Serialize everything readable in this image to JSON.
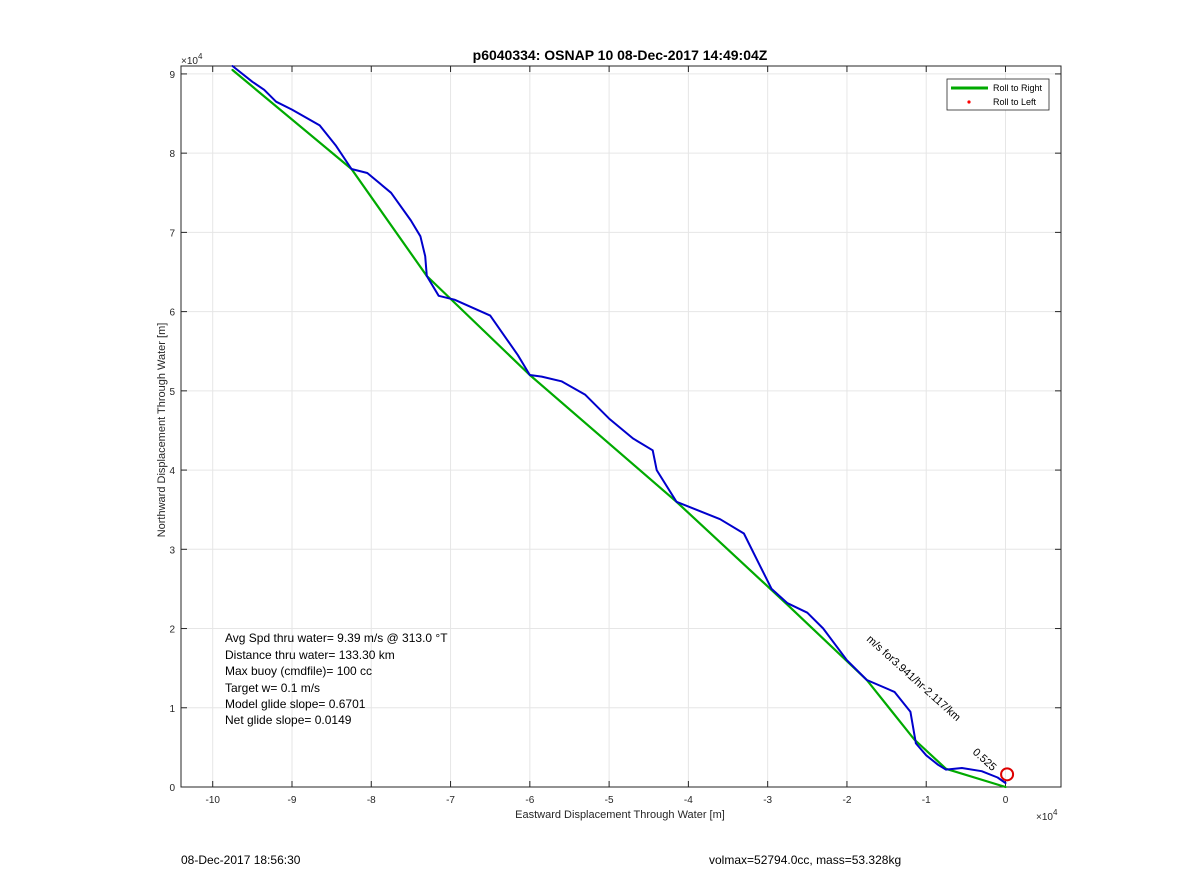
{
  "chart_data": {
    "type": "line",
    "title": "p6040334: OSNAP 10 08-Dec-2017 14:49:04Z",
    "xlabel": "Eastward Displacement Through Water [m]",
    "ylabel": "Northward Displacement Through Water [m]",
    "x_exponent_label": "×10",
    "x_exponent_power": "4",
    "y_exponent_label": "×10",
    "y_exponent_power": "4",
    "xlim": [
      -10.4,
      0.7
    ],
    "ylim": [
      0,
      9.1
    ],
    "xticks": [
      -10,
      -9,
      -8,
      -7,
      -6,
      -5,
      -4,
      -3,
      -2,
      -1,
      0
    ],
    "yticks": [
      0,
      1,
      2,
      3,
      4,
      5,
      6,
      7,
      8,
      9
    ],
    "grid": true,
    "legend": {
      "position": "top-right",
      "entries": [
        {
          "label": "Roll to Right",
          "color": "#00aa00",
          "style": "line"
        },
        {
          "label": "Roll to Left",
          "color": "#ff0000",
          "style": "dot"
        }
      ]
    },
    "series": [
      {
        "name": "Roll to Right",
        "color": "#00aa00",
        "x": [
          0,
          -0.75,
          -1.15,
          -1.75,
          -2.75,
          -4.15,
          -6.0,
          -7.3,
          -8.25,
          -9.75
        ],
        "y": [
          0,
          0.23,
          0.6,
          1.35,
          2.3,
          3.6,
          5.2,
          6.45,
          7.8,
          9.05
        ]
      },
      {
        "name": "Track",
        "color": "#0000cc",
        "x": [
          0,
          -0.1,
          -0.3,
          -0.55,
          -0.75,
          -0.85,
          -1.0,
          -1.13,
          -1.2,
          -1.4,
          -1.75,
          -2.0,
          -2.3,
          -2.5,
          -2.75,
          -2.95,
          -3.1,
          -3.3,
          -3.6,
          -3.9,
          -4.15,
          -4.4,
          -4.45,
          -4.7,
          -5.0,
          -5.3,
          -5.6,
          -5.85,
          -6.0,
          -6.15,
          -6.5,
          -6.95,
          -7.15,
          -7.3,
          -7.32,
          -7.38,
          -7.5,
          -7.75,
          -8.05,
          -8.25,
          -8.45,
          -8.65,
          -9.0,
          -9.2,
          -9.35,
          -9.5,
          -9.75
        ],
        "y": [
          0.05,
          0.12,
          0.2,
          0.24,
          0.22,
          0.28,
          0.4,
          0.55,
          0.95,
          1.2,
          1.35,
          1.6,
          2.0,
          2.2,
          2.32,
          2.5,
          2.8,
          3.2,
          3.38,
          3.5,
          3.6,
          4.0,
          4.25,
          4.4,
          4.65,
          4.95,
          5.12,
          5.18,
          5.2,
          5.45,
          5.95,
          6.15,
          6.2,
          6.45,
          6.7,
          6.95,
          7.15,
          7.5,
          7.75,
          7.8,
          8.1,
          8.35,
          8.55,
          8.65,
          8.8,
          8.9,
          9.1
        ]
      }
    ],
    "markers": [
      {
        "name": "current-position",
        "x": 0.02,
        "y": 0.16,
        "color": "#dd0000"
      }
    ],
    "annotations": {
      "rotated_label": "m/s for3.941/hr-2.117/km",
      "overlap_label": "0.525",
      "stats": [
        "Avg Spd thru water=  9.39 m/s @ 313.0 °T",
        "Distance thru water= 133.30 km",
        "Max buoy (cmdfile)= 100 cc",
        "Target w= 0.1 m/s",
        "Model glide slope= 0.6701",
        "Net glide slope= 0.0149"
      ]
    }
  },
  "footer": {
    "timestamp": "08-Dec-2017 18:56:30",
    "info": "volmax=52794.0cc, mass=53.328kg"
  }
}
